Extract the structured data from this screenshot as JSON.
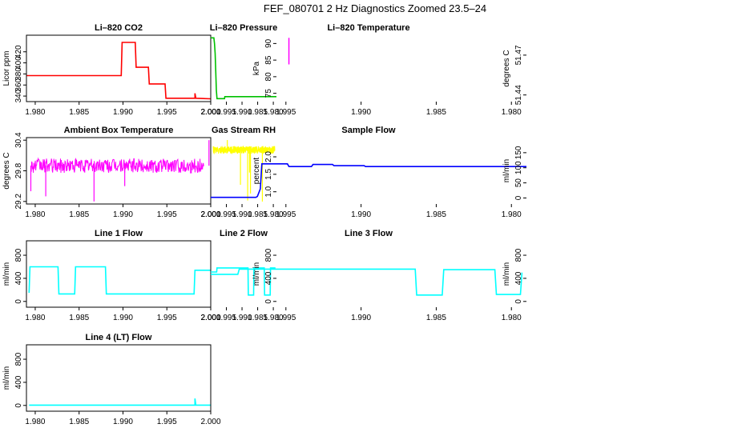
{
  "page": {
    "title": "FEF_080701  2 Hz Diagnostics Zoomed 23.5–24"
  },
  "colors": {
    "red": "#ff0000",
    "green": "#00c000",
    "magenta": "#ff00ff",
    "yellow": "#ffff00",
    "blue": "#0000ff",
    "cyan": "#00ffff",
    "axis": "#000000"
  },
  "chart_data": [
    {
      "id": "co2",
      "type": "line",
      "title": "Li–820 CO2",
      "ylabel": "Licor ppm",
      "color": "red",
      "xlim": [
        1.979,
        2.0
      ],
      "ylim": [
        330,
        450
      ],
      "x_ticks": [
        "1.980",
        "1.985",
        "1.990",
        "1.995",
        "2.000"
      ],
      "y_ticks": [
        340,
        360,
        380,
        400,
        420
      ],
      "x": [
        1.979,
        1.9898,
        1.9899,
        1.9914,
        1.9915,
        1.9929,
        1.993,
        1.9948,
        1.9949,
        1.9982,
        1.9982,
        1.9983,
        2.0
      ],
      "y": [
        377,
        377,
        437,
        437,
        392,
        392,
        362,
        362,
        336,
        336,
        345,
        336,
        335
      ]
    },
    {
      "id": "pressure",
      "type": "line",
      "title": "Li–820 Pressure",
      "ylabel": "kPa",
      "color": "green",
      "xlim": [
        1.979,
        2.0
      ],
      "ylim": [
        72.5,
        92.5
      ],
      "x_ticks": [
        "1.980",
        "1.985",
        "1.990",
        "1.995",
        "2.000"
      ],
      "y_ticks": [
        75,
        80,
        85,
        90
      ],
      "x": [
        1.979,
        1.9955,
        1.9956,
        1.998,
        1.9982,
        1.9984,
        1.9986,
        1.9988,
        1.999,
        2.0
      ],
      "y": [
        74,
        74,
        73.4,
        73.4,
        76,
        82,
        87,
        90,
        91.7,
        91.7
      ]
    },
    {
      "id": "temperature",
      "type": "band",
      "title": "Li–820 Temperature",
      "ylabel": "degrees C",
      "color": "magenta",
      "xlim": [
        1.979,
        2.0
      ],
      "ylim": [
        51.435,
        51.485
      ],
      "x_ticks": [
        "1.980",
        "1.985",
        "1.990",
        "1.995",
        "2.000"
      ],
      "y_ticks": [
        51.44,
        51.47
      ],
      "band": [
        51.44,
        51.463
      ],
      "gaps_x": [
        1.9803,
        1.9815,
        1.9822,
        1.9826,
        1.9829,
        1.9832,
        1.9862,
        1.9895,
        1.9935,
        1.9978
      ],
      "spike": {
        "x": 1.9948,
        "y": 51.483
      }
    },
    {
      "id": "ambient",
      "type": "noise",
      "title": "Ambient Box Temperature",
      "ylabel": "degrees C",
      "color": "magenta",
      "xlim": [
        1.979,
        2.0
      ],
      "ylim": [
        29.15,
        30.45
      ],
      "x_ticks": [
        "1.980",
        "1.985",
        "1.990",
        "1.995",
        "2.000"
      ],
      "y_ticks": [
        29.2,
        29.8,
        30.4
      ],
      "center": 29.9,
      "spread": 0.14,
      "outliers": [
        [
          1.9795,
          29.4
        ],
        [
          1.9812,
          29.3
        ],
        [
          1.9867,
          29.2
        ],
        [
          1.9902,
          29.5
        ],
        [
          1.9998,
          30.4
        ]
      ]
    },
    {
      "id": "rh",
      "type": "noise",
      "title": "Gas Stream RH",
      "ylabel": "percent",
      "color": "yellow",
      "xlim": [
        1.979,
        2.0
      ],
      "ylim": [
        0.65,
        2.55
      ],
      "x_ticks": [
        "1.980",
        "1.985",
        "1.990",
        "1.995",
        "2.000"
      ],
      "y_ticks": [
        1.0,
        1.5,
        2.0
      ],
      "center": 2.2,
      "spread": 0.11,
      "outliers": [
        [
          1.9835,
          0.72
        ],
        [
          1.9873,
          0.95
        ],
        [
          1.9876,
          1.55
        ],
        [
          1.9882,
          0.75
        ],
        [
          1.9905,
          1.2
        ],
        [
          1.9947,
          2.48
        ]
      ]
    },
    {
      "id": "sample",
      "type": "line",
      "title": "Sample Flow",
      "ylabel": "ml/min",
      "color": "blue",
      "xlim": [
        1.979,
        2.0
      ],
      "ylim": [
        -20,
        200
      ],
      "x_ticks": [
        "1.980",
        "1.985",
        "1.990",
        "1.995",
        "2.000"
      ],
      "y_ticks": [
        0,
        50,
        100,
        150
      ],
      "x": [
        1.979,
        1.9897,
        1.9898,
        1.9918,
        1.9919,
        1.9932,
        1.9933,
        1.9948,
        1.9949,
        1.9966,
        1.9967,
        1.9969,
        1.997,
        2.0
      ],
      "y": [
        104,
        104,
        107,
        107,
        111,
        111,
        104,
        104,
        113,
        113,
        30,
        5,
        2,
        2
      ]
    },
    {
      "id": "line1",
      "type": "line",
      "title": "Line 1 Flow",
      "ylabel": "ml/min",
      "color": "cyan",
      "xlim": [
        1.979,
        2.0
      ],
      "ylim": [
        -100,
        1050
      ],
      "x_ticks": [
        "1.980",
        "1.985",
        "1.990",
        "1.995",
        "2.000"
      ],
      "y_ticks": [
        0,
        400,
        800
      ],
      "x": [
        1.9793,
        1.9794,
        1.9826,
        1.9827,
        1.9845,
        1.9846,
        1.988,
        1.9881,
        1.9981,
        1.9982,
        2.0
      ],
      "y": [
        150,
        600,
        600,
        130,
        130,
        600,
        600,
        130,
        130,
        540,
        540
      ]
    },
    {
      "id": "line2",
      "type": "line",
      "title": "Line 2 Flow",
      "ylabel": "ml/min",
      "color": "cyan",
      "xlim": [
        1.979,
        2.0
      ],
      "ylim": [
        -100,
        1050
      ],
      "x_ticks": [
        "1.980",
        "1.985",
        "1.990",
        "1.995",
        "2.000"
      ],
      "y_ticks": [
        0,
        400,
        800
      ],
      "x": [
        1.9793,
        1.9809,
        1.981,
        1.9828,
        1.9829,
        1.9862,
        1.9863,
        1.988,
        1.9881,
        1.998,
        1.9981,
        2.0
      ],
      "y": [
        580,
        580,
        110,
        110,
        580,
        580,
        110,
        110,
        580,
        580,
        510,
        510
      ]
    },
    {
      "id": "line3",
      "type": "line",
      "title": "Line 3 Flow",
      "ylabel": "ml/min",
      "color": "cyan",
      "xlim": [
        1.979,
        2.0
      ],
      "ylim": [
        -100,
        1050
      ],
      "x_ticks": [
        "1.980",
        "1.985",
        "1.990",
        "1.995",
        "2.000"
      ],
      "y_ticks": [
        0,
        400,
        800
      ],
      "x": [
        1.9793,
        1.9794,
        1.981,
        1.9811,
        1.9845,
        1.9846,
        1.9863,
        1.9864,
        1.9981,
        1.9982,
        2.0
      ],
      "y": [
        500,
        120,
        120,
        550,
        550,
        110,
        110,
        560,
        560,
        470,
        470
      ]
    },
    {
      "id": "line4",
      "type": "line",
      "title": "Line 4 (LT) Flow",
      "ylabel": "ml/min",
      "color": "cyan",
      "xlim": [
        1.979,
        2.0
      ],
      "ylim": [
        -100,
        1050
      ],
      "x_ticks": [
        "1.980",
        "1.985",
        "1.990",
        "1.995",
        "2.000"
      ],
      "y_ticks": [
        0,
        400,
        800
      ],
      "x": [
        1.9793,
        1.9982,
        1.9982,
        1.9983,
        2.0
      ],
      "y": [
        5,
        5,
        120,
        5,
        5
      ]
    }
  ]
}
